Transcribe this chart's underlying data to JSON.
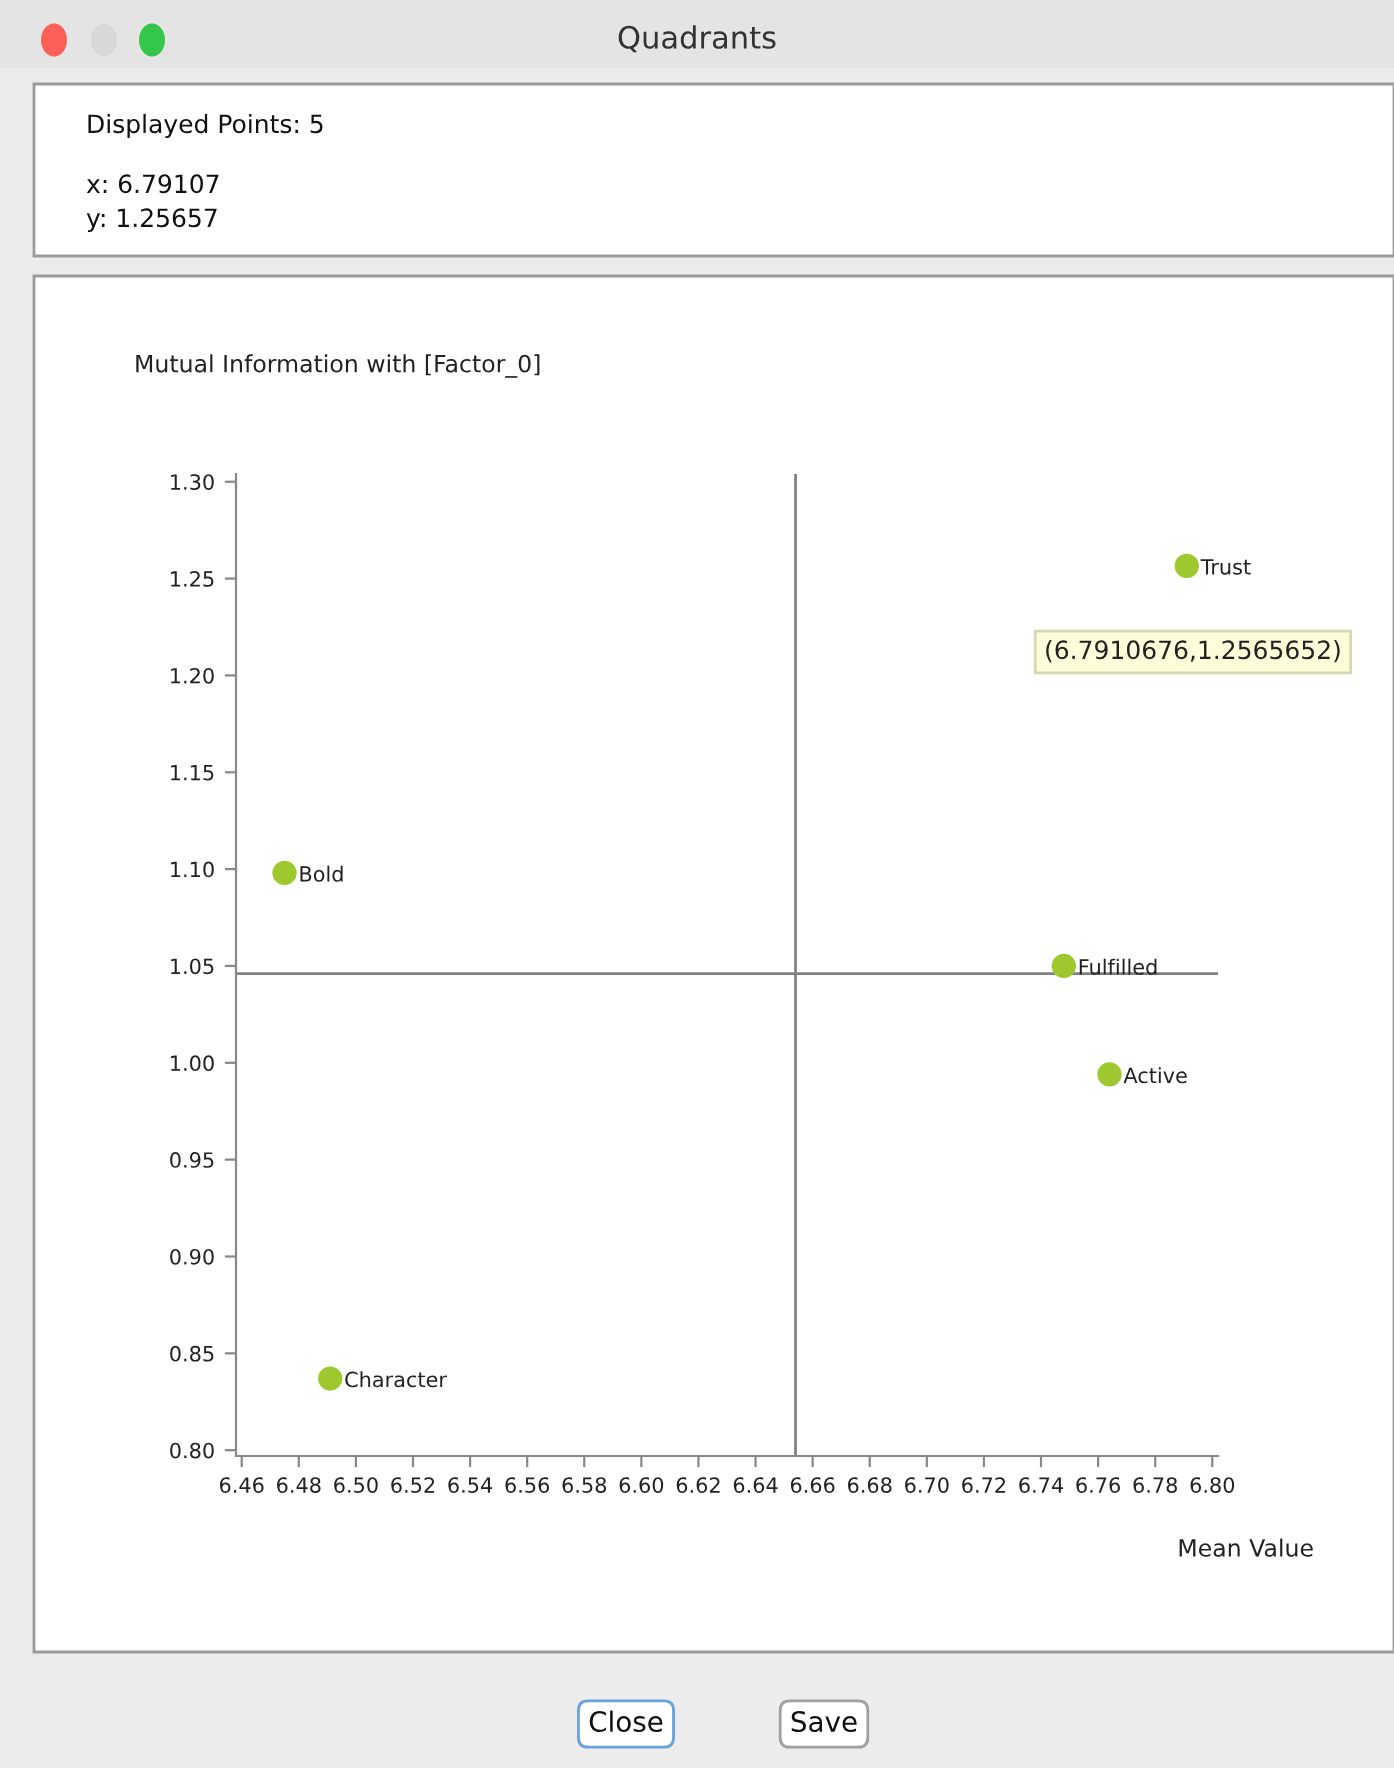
{
  "chart_data": {
    "type": "scatter",
    "title": "Quadrants",
    "ylabel": "Mutual Information with [Factor_0]",
    "xlabel": "Mean Value",
    "x": [
      6.475,
      6.491,
      6.748,
      6.764,
      6.7910676
    ],
    "series": [
      {
        "color": "#9dc92f",
        "values": [
          1.098,
          0.837,
          1.05,
          0.994,
          1.2565652
        ]
      }
    ],
    "marker": "circle",
    "grid": false,
    "legend": false,
    "xlim": [
      6.458,
      6.802
    ],
    "ylim": [
      0.797,
      1.304
    ],
    "xticks": [
      6.46,
      6.48,
      {
        "value": 6.5,
        "label": "6.50"
      },
      6.52,
      6.54,
      6.56,
      6.58,
      {
        "value": 6.6,
        "label": "6.60"
      },
      6.62,
      6.64,
      6.66,
      6.68,
      {
        "value": 6.7,
        "label": "6.70"
      },
      6.72,
      6.74,
      6.76,
      6.78,
      {
        "value": 6.8,
        "label": "6.80"
      }
    ],
    "yticks": [
      {
        "value": 0.8,
        "label": "0.80"
      },
      0.85,
      {
        "value": 0.9,
        "label": "0.90"
      },
      0.95,
      {
        "value": 1.0,
        "label": "1.00"
      },
      1.05,
      {
        "value": 1.1,
        "label": "1.10"
      },
      1.15,
      {
        "value": 1.2,
        "label": "1.20"
      },
      1.25,
      {
        "value": 1.3,
        "label": "1.30"
      }
    ],
    "ref_lines": [
      {
        "axis": "x",
        "value": 6.654,
        "color": "#808080"
      },
      {
        "axis": "y",
        "value": 1.046,
        "color": "#808080"
      }
    ],
    "annotations": [
      {
        "text": "Bold",
        "x": 6.475,
        "y": 1.098
      },
      {
        "text": "Character",
        "x": 6.491,
        "y": 0.837
      },
      {
        "text": "Fulfilled",
        "x": 6.748,
        "y": 1.05
      },
      {
        "text": "Active",
        "x": 6.764,
        "y": 0.994
      },
      {
        "text": "Trust",
        "x": 6.7910676,
        "y": 1.2565652
      },
      "Displayed Points: 5",
      "x: 6.79107",
      "y: 1.25657",
      "(6.7910676,1.2565652)",
      "Close",
      "Save"
    ]
  }
}
